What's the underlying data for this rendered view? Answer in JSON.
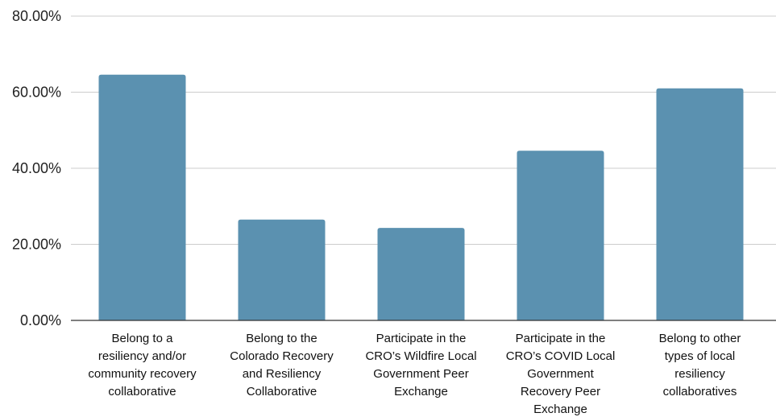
{
  "chart_data": {
    "type": "bar",
    "categories": [
      [
        "Belong to a",
        "resiliency and/or",
        "community recovery",
        "collaborative"
      ],
      [
        "Belong to the",
        "Colorado Recovery",
        "and Resiliency",
        "Collaborative"
      ],
      [
        "Participate in the",
        "CRO’s Wildfire Local",
        "Government Peer",
        "Exchange"
      ],
      [
        "Participate in the",
        "CRO’s COVID Local",
        "Government",
        "Recovery Peer",
        "Exchange"
      ],
      [
        "Belong to other",
        "types of local",
        "resiliency",
        "collaboratives"
      ]
    ],
    "values": [
      0.646,
      0.265,
      0.243,
      0.446,
      0.61
    ],
    "yticks": [
      0,
      0.2,
      0.4,
      0.6,
      0.8
    ],
    "ytick_labels": [
      "0.00%",
      "20.00%",
      "40.00%",
      "60.00%",
      "80.00%"
    ],
    "ylim": [
      0,
      0.8
    ],
    "bar_color": "#5b91b0",
    "grid": true,
    "title": "",
    "xlabel": "",
    "ylabel": ""
  }
}
